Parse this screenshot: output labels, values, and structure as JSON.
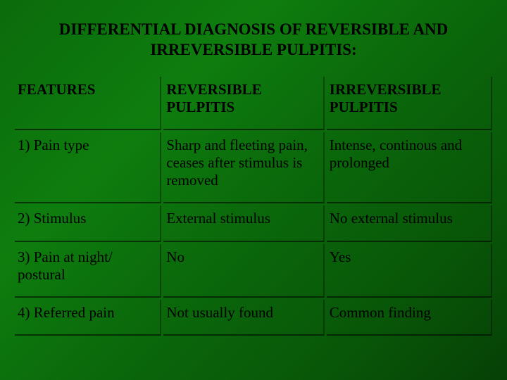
{
  "title": "DIFFERENTIAL DIAGNOSIS OF REVERSIBLE AND IRREVERSIBLE PULPITIS:",
  "table": {
    "type": "table",
    "background": "transparent",
    "border_color": "#000000",
    "header_fontweight": "bold",
    "cell_fontsize": 21,
    "title_fontsize": 23,
    "font_family": "Georgia, Times New Roman, serif",
    "columns": [
      {
        "label": "FEATURES",
        "width_pct": 31
      },
      {
        "label": "REVERSIBLE PULPITIS",
        "width_pct": 34
      },
      {
        "label": "IRREVERSIBLE PULPITIS",
        "width_pct": 35
      }
    ],
    "rows": [
      [
        "1) Pain type",
        "Sharp and fleeting pain, ceases after stimulus is removed",
        "Intense, continous and prolonged"
      ],
      [
        "2) Stimulus",
        "External stimulus",
        "No external stimulus"
      ],
      [
        "3) Pain at night/ postural",
        "No",
        "Yes"
      ],
      [
        "4) Referred pain",
        "Not usually found",
        "Common finding"
      ]
    ]
  },
  "colors": {
    "bg_gradient_start": "#0b6b0b",
    "bg_gradient_mid": "#0e7d0e",
    "bg_gradient_end": "#064006",
    "text": "#000000",
    "divider": "#000000"
  }
}
